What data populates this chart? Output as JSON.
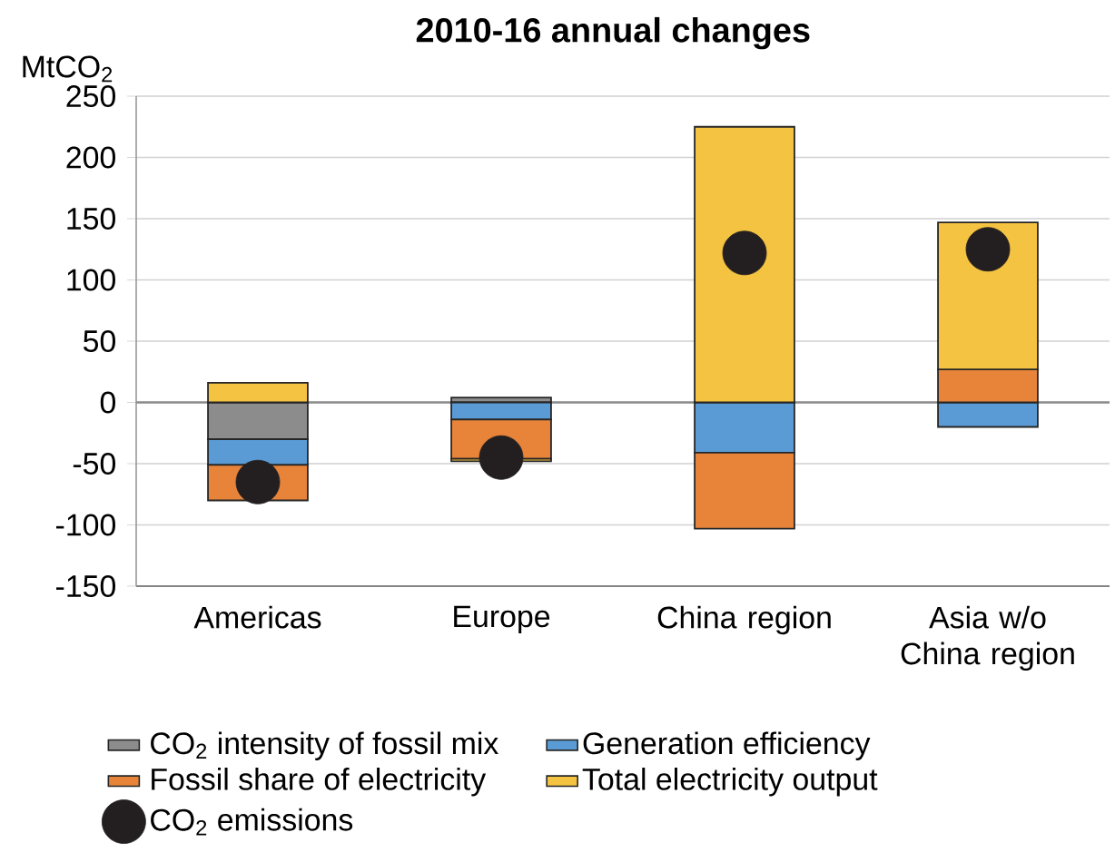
{
  "chart_data": {
    "type": "bar",
    "stacked": true,
    "title": "2010-16 annual changes",
    "ylabel": "MtCO$_{2}$",
    "categories": [
      "Americas",
      "Europe",
      "China region",
      "Asia w/o China region"
    ],
    "series": [
      {
        "name": "CO$_{2}$ intensity of fossil mix",
        "color": "#8c8c8c",
        "values": [
          -30,
          4,
          0,
          0
        ]
      },
      {
        "name": "Generation efficiency",
        "color": "#5b9bd5",
        "values": [
          -21,
          -14,
          -41,
          -20
        ]
      },
      {
        "name": "Fossil share of electricity",
        "color": "#e8843a",
        "values": [
          -29,
          -32,
          -62,
          27
        ]
      },
      {
        "name": "Total electricity output",
        "color": "#f5c342",
        "values": [
          16,
          -2,
          225,
          120
        ]
      },
      {
        "name": "CO$_{2}$ emissions",
        "type": "scatter",
        "color": "#231f20",
        "marker": "circle",
        "x": [
          "Americas",
          "Europe",
          "China region",
          "Asia w/o China region"
        ],
        "values": [
          -65,
          -45,
          122,
          125
        ]
      }
    ],
    "ylim": [
      -150,
      250
    ],
    "yticks": [
      -150,
      -100,
      -50,
      0,
      50,
      100,
      150,
      200,
      250
    ],
    "grid": "y",
    "legend": "bottom"
  }
}
